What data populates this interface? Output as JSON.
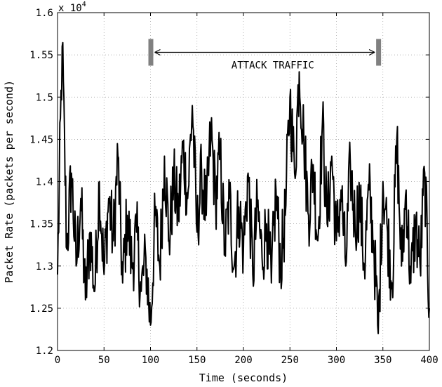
{
  "chart_data": {
    "type": "line",
    "title": "",
    "xlabel": "Time (seconds)",
    "ylabel": "Packet Rate (packets per second)",
    "y_multiplier_label": "x 10",
    "y_multiplier_exponent": "4",
    "xlim": [
      0,
      400
    ],
    "ylim": [
      1.2,
      1.6
    ],
    "x_ticks": [
      0,
      50,
      100,
      150,
      200,
      250,
      300,
      350,
      400
    ],
    "x_tick_labels": [
      "0",
      "50",
      "100",
      "150",
      "200",
      "250",
      "300",
      "350",
      "400"
    ],
    "y_ticks": [
      1.2,
      1.25,
      1.3,
      1.35,
      1.4,
      1.45,
      1.5,
      1.55,
      1.6
    ],
    "y_tick_labels": [
      "1.2",
      "1.25",
      "1.3",
      "1.35",
      "1.4",
      "1.45",
      "1.5",
      "1.55",
      "1.6"
    ],
    "grid": true,
    "legend": "none",
    "line_color": "#000000",
    "annotation": {
      "text": "ATTACK TRAFFIC",
      "x_start": 100,
      "x_end": 345,
      "y": 1.553,
      "marker_color": "#808080"
    },
    "series": [
      {
        "x": [
          0,
          5,
          10,
          15,
          20,
          25,
          30,
          35,
          40,
          45,
          50,
          55,
          60,
          65,
          70,
          75,
          80,
          85,
          90,
          95,
          100,
          105,
          110,
          115,
          120,
          125,
          130,
          135,
          140,
          145,
          150,
          155,
          160,
          165,
          170,
          175,
          180,
          185,
          190,
          195,
          200,
          205,
          210,
          215,
          220,
          225,
          230,
          235,
          240,
          245,
          250,
          255,
          260,
          265,
          270,
          275,
          280,
          285,
          290,
          295,
          300,
          305,
          310,
          315,
          320,
          325,
          330,
          335,
          340,
          345,
          350,
          355,
          360,
          365,
          370,
          375,
          380,
          385,
          390,
          395,
          400
        ],
        "y": [
          1.29,
          1.56,
          1.32,
          1.41,
          1.3,
          1.38,
          1.26,
          1.34,
          1.27,
          1.4,
          1.29,
          1.38,
          1.33,
          1.43,
          1.28,
          1.36,
          1.3,
          1.34,
          1.27,
          1.31,
          1.23,
          1.36,
          1.3,
          1.43,
          1.33,
          1.4,
          1.36,
          1.44,
          1.38,
          1.49,
          1.34,
          1.41,
          1.36,
          1.46,
          1.38,
          1.43,
          1.32,
          1.38,
          1.3,
          1.37,
          1.32,
          1.41,
          1.29,
          1.37,
          1.31,
          1.35,
          1.28,
          1.39,
          1.3,
          1.36,
          1.5,
          1.41,
          1.53,
          1.45,
          1.36,
          1.42,
          1.33,
          1.47,
          1.35,
          1.43,
          1.33,
          1.39,
          1.3,
          1.42,
          1.35,
          1.38,
          1.3,
          1.39,
          1.33,
          1.22,
          1.4,
          1.34,
          1.28,
          1.45,
          1.3,
          1.39,
          1.28,
          1.35,
          1.3,
          1.41,
          1.25
        ]
      }
    ]
  }
}
